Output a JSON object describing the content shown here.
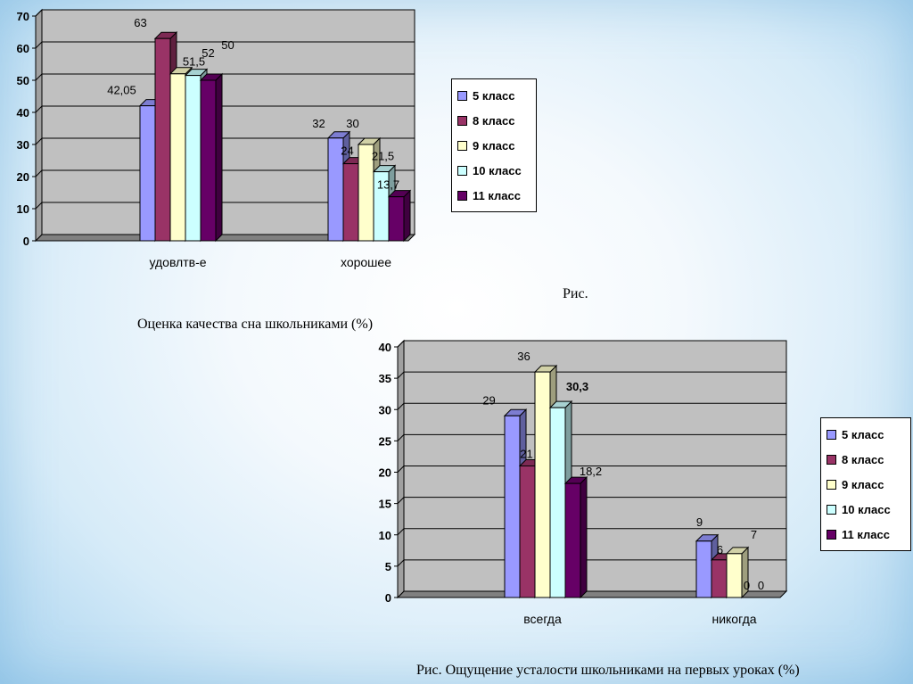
{
  "captions": {
    "chart1_fig": "Рис.",
    "chart1_title": "Оценка качества сна школьниками (%)",
    "chart2_title": "Рис. Ощущение усталости школьниками на первых уроках (%)"
  },
  "colors": [
    "#9999ff",
    "#993366",
    "#ffffcc",
    "#ccffff",
    "#660066"
  ],
  "chart_data": [
    {
      "type": "bar",
      "title": "Оценка качества сна школьниками (%)",
      "categories": [
        "удовлтв-е",
        "хорошее"
      ],
      "series": [
        {
          "name": "5 класс",
          "values": [
            42.05,
            32
          ]
        },
        {
          "name": "8 класс",
          "values": [
            63,
            24
          ]
        },
        {
          "name": "9 класс",
          "values": [
            52,
            30
          ]
        },
        {
          "name": "10 класс",
          "values": [
            51.5,
            21.5
          ]
        },
        {
          "name": "11 класс",
          "values": [
            50,
            13.7
          ]
        }
      ],
      "labels": [
        [
          "42,05",
          "63",
          "52",
          "51,5",
          "50"
        ],
        [
          "32",
          "24",
          "30",
          "21,5",
          "13,7"
        ]
      ],
      "yticks": [
        "0",
        "10",
        "20",
        "30",
        "40",
        "50",
        "60",
        "70"
      ],
      "ylim": [
        0,
        70
      ],
      "grid": true,
      "legend": "right"
    },
    {
      "type": "bar",
      "title": "Ощущение усталости школьниками на первых уроках (%)",
      "categories": [
        "всегда",
        "никогда"
      ],
      "series": [
        {
          "name": "5 класс",
          "values": [
            29,
            9
          ]
        },
        {
          "name": "8 класс",
          "values": [
            21,
            6
          ]
        },
        {
          "name": "9 класс",
          "values": [
            36,
            7
          ]
        },
        {
          "name": "10 класс",
          "values": [
            30.3,
            0
          ]
        },
        {
          "name": "11 класс",
          "values": [
            18.2,
            0
          ]
        }
      ],
      "labels": [
        [
          "29",
          "21",
          "36",
          "30,3",
          "18,2"
        ],
        [
          "9",
          "6",
          "7",
          "0",
          "0"
        ]
      ],
      "yticks": [
        "0",
        "5",
        "10",
        "15",
        "20",
        "25",
        "30",
        "35",
        "40"
      ],
      "ylim": [
        0,
        40
      ],
      "grid": true,
      "legend": "right"
    }
  ]
}
